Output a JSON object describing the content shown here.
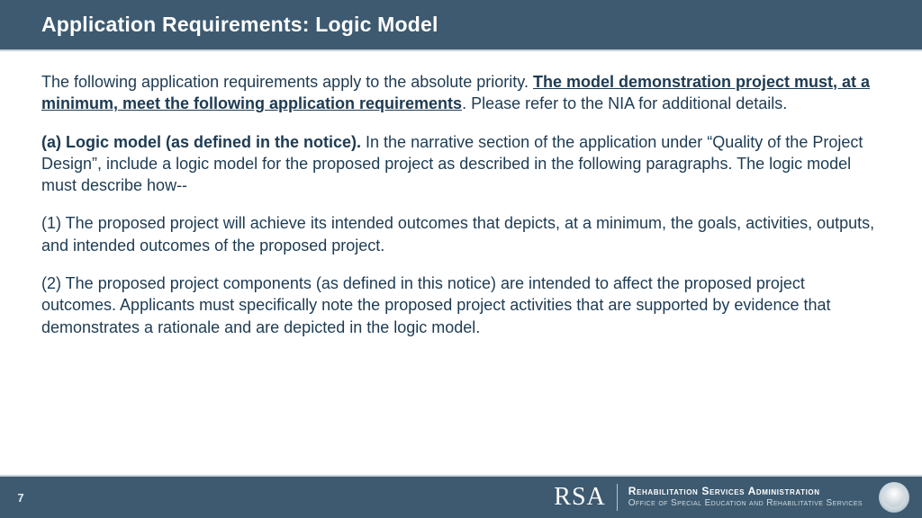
{
  "colors": {
    "header_bg": "#3d5a70",
    "header_text": "#ffffff",
    "body_bg": "#ffffff",
    "body_text": "#1d3b53",
    "divider": "#c9d2d8"
  },
  "header": {
    "title": "Application Requirements: Logic Model"
  },
  "body": {
    "p1_pre": "The following application requirements apply to the absolute priority. ",
    "p1_bold_uline": "The model demonstration project must, at a minimum, meet the following application requirements",
    "p1_post": ". Please refer to the NIA for additional details.",
    "p2_bold": "(a) Logic model (as defined in the notice).",
    "p2_rest": " In the narrative section of the application under “Quality of the Project Design”, include a logic model for the proposed project as described in the following paragraphs. The logic model must describe how--",
    "p3": "(1) The proposed project will achieve its intended outcomes that depicts, at a minimum, the goals, activities, outputs, and intended outcomes of the proposed project.",
    "p4": "(2) The proposed project components (as defined in this notice) are intended to affect the proposed project outcomes. Applicants must specifically note the proposed project activities that are supported by evidence that demonstrates a rationale and are depicted in the logic model."
  },
  "footer": {
    "page": "7",
    "logo_text": "RSA",
    "line1": "Rehabilitation Services Administration",
    "line2": "Office of Special Education and Rehabilitative Services"
  }
}
